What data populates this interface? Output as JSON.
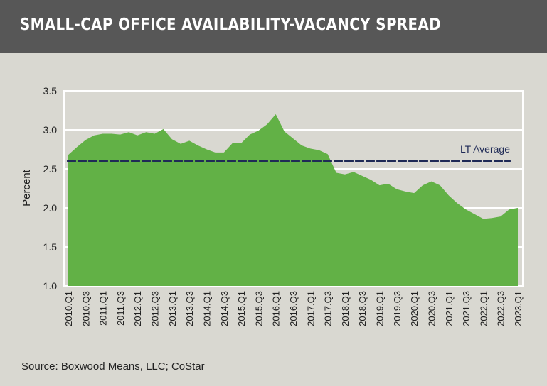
{
  "header": {
    "title": "SMALL-CAP OFFICE AVAILABILITY-VACANCY SPREAD"
  },
  "source": "Source: Boxwood Means, LLC; CoStar",
  "colors": {
    "header_bg": "#575757",
    "background": "#d9d8d1",
    "area": "#62b146",
    "average_line": "#1f2a56"
  },
  "chart_data": {
    "type": "area",
    "title": "SMALL-CAP OFFICE AVAILABILITY-VACANCY SPREAD",
    "ylabel": "Percent",
    "xlabel": "",
    "ylim": [
      1.0,
      3.5
    ],
    "yticks": [
      "1.0",
      "1.5",
      "2.0",
      "2.5",
      "3.0",
      "3.5"
    ],
    "grid": "horizontal",
    "x": [
      "2010.Q1",
      "2010.Q2",
      "2010.Q3",
      "2010.Q4",
      "2011.Q1",
      "2011.Q2",
      "2011.Q3",
      "2011.Q4",
      "2012.Q1",
      "2012.Q2",
      "2012.Q3",
      "2012.Q4",
      "2013.Q1",
      "2013.Q2",
      "2013.Q3",
      "2013.Q4",
      "2014.Q1",
      "2014.Q2",
      "2014.Q3",
      "2014.Q4",
      "2015.Q1",
      "2015.Q2",
      "2015.Q3",
      "2015.Q4",
      "2016.Q1",
      "2016.Q2",
      "2016.Q3",
      "2016.Q4",
      "2017.Q1",
      "2017.Q2",
      "2017.Q3",
      "2017.Q4",
      "2018.Q1",
      "2018.Q2",
      "2018.Q3",
      "2018.Q4",
      "2019.Q1",
      "2019.Q2",
      "2019.Q3",
      "2019.Q4",
      "2020.Q1",
      "2020.Q2",
      "2020.Q3",
      "2020.Q4",
      "2021.Q1",
      "2021.Q2",
      "2021.Q3",
      "2021.Q4",
      "2022.Q1",
      "2022.Q2",
      "2022.Q3",
      "2022.Q4",
      "2023.Q1"
    ],
    "xtick_labels": [
      "2010.Q1",
      "2010.Q3",
      "2011.Q1",
      "2011.Q3",
      "2012.Q1",
      "2012.Q3",
      "2013.Q1",
      "2013.Q3",
      "2014.Q1",
      "2014.Q3",
      "2015.Q1",
      "2015.Q3",
      "2016.Q1",
      "2016.Q3",
      "2017.Q1",
      "2017.Q3",
      "2018.Q1",
      "2018.Q3",
      "2019.Q1",
      "2019.Q3",
      "2020.Q1",
      "2020.Q3",
      "2021.Q1",
      "2021.Q3",
      "2022.Q1",
      "2022.Q3",
      "2023.Q1"
    ],
    "series": [
      {
        "values": [
          2.68,
          2.78,
          2.87,
          2.93,
          2.95,
          2.95,
          2.94,
          2.97,
          2.93,
          2.97,
          2.95,
          3.01,
          2.88,
          2.82,
          2.86,
          2.8,
          2.75,
          2.71,
          2.71,
          2.83,
          2.83,
          2.94,
          2.99,
          3.07,
          3.2,
          2.98,
          2.89,
          2.8,
          2.76,
          2.74,
          2.69,
          2.45,
          2.43,
          2.46,
          2.41,
          2.36,
          2.29,
          2.31,
          2.24,
          2.21,
          2.19,
          2.29,
          2.34,
          2.29,
          2.16,
          2.06,
          1.98,
          1.92,
          1.86,
          1.87,
          1.89,
          1.98,
          2.0
        ]
      }
    ],
    "reference_line": {
      "label": "LT Average",
      "value": 2.6,
      "style": "dashed"
    }
  }
}
